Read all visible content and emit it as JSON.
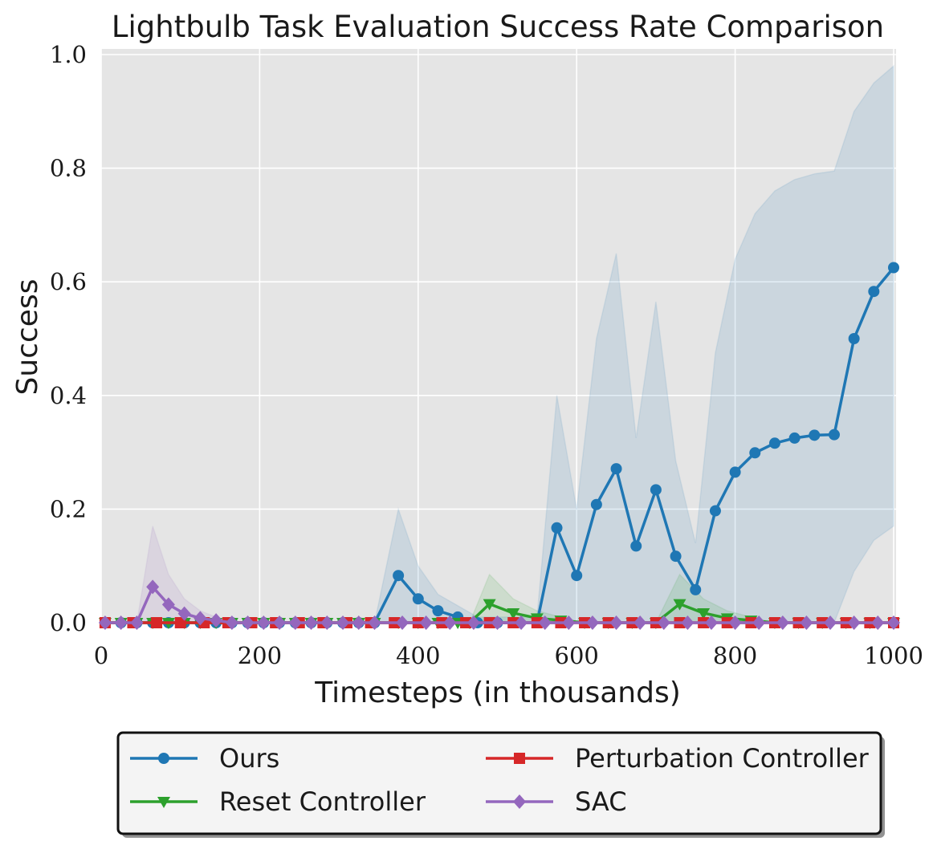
{
  "chart_data": {
    "type": "line",
    "title": "Lightbulb Task Evaluation Success Rate Comparison",
    "xlabel": "Timesteps (in thousands)",
    "ylabel": "Success",
    "xlim": [
      0,
      1000
    ],
    "ylim": [
      0,
      1.0
    ],
    "xticks": [
      0,
      200,
      400,
      600,
      800,
      1000
    ],
    "xtick_labels": [
      "0",
      "200",
      "400",
      "600",
      "800",
      "1000"
    ],
    "yticks": [
      0.0,
      0.2,
      0.4,
      0.6,
      0.8,
      1.0
    ],
    "ytick_labels": [
      "0.0",
      "0.2",
      "0.4",
      "0.6",
      "0.8",
      "1.0"
    ],
    "grid": true,
    "legend_position": "below",
    "series": [
      {
        "name": "Ours",
        "color": "#1f77b4",
        "marker": "circle",
        "x": [
          5,
          25,
          45,
          65,
          85,
          105,
          125,
          145,
          165,
          185,
          205,
          225,
          245,
          265,
          285,
          305,
          325,
          345,
          375,
          400,
          425,
          450,
          475,
          500,
          525,
          550,
          575,
          600,
          625,
          650,
          675,
          700,
          725,
          750,
          775,
          800,
          825,
          850,
          875,
          900,
          925,
          950,
          975,
          1000
        ],
        "values": [
          0,
          0,
          0,
          0,
          0,
          0,
          0,
          0,
          0,
          0,
          0,
          0,
          0,
          0,
          0,
          0,
          0,
          0,
          0.083,
          0.042,
          0.021,
          0.01,
          0,
          0,
          0,
          0,
          0.167,
          0.083,
          0.208,
          0.271,
          0.135,
          0.234,
          0.117,
          0.058,
          0.197,
          0.265,
          0.299,
          0.316,
          0.325,
          0.33,
          0.331,
          0.5,
          0.583,
          0.625
        ],
        "band_upper": [
          0,
          0,
          0,
          0,
          0,
          0,
          0,
          0,
          0,
          0,
          0,
          0,
          0,
          0,
          0,
          0,
          0,
          0,
          0.2,
          0.1,
          0.05,
          0.03,
          0.01,
          0.01,
          0.01,
          0.01,
          0.4,
          0.2,
          0.5,
          0.65,
          0.325,
          0.565,
          0.285,
          0.14,
          0.475,
          0.64,
          0.72,
          0.76,
          0.78,
          0.79,
          0.795,
          0.9,
          0.95,
          0.98
        ],
        "band_lower": [
          0,
          0,
          0,
          0,
          0,
          0,
          0,
          0,
          0,
          0,
          0,
          0,
          0,
          0,
          0,
          0,
          0,
          0,
          0,
          0,
          0,
          0,
          0,
          0,
          0,
          0,
          0,
          0,
          0,
          0,
          0,
          0,
          0,
          0,
          0,
          0,
          0,
          0,
          0,
          0,
          0,
          0.09,
          0.145,
          0.17
        ]
      },
      {
        "name": "Reset Controller",
        "color": "#2ca02c",
        "marker": "triangle-down",
        "x": [
          5,
          25,
          45,
          65,
          85,
          105,
          125,
          145,
          165,
          185,
          205,
          225,
          245,
          265,
          285,
          305,
          325,
          345,
          375,
          400,
          425,
          450,
          465,
          490,
          520,
          550,
          580,
          610,
          640,
          670,
          700,
          730,
          760,
          790,
          820,
          850,
          880,
          910,
          940,
          970,
          1000
        ],
        "values": [
          0,
          0,
          0,
          0,
          0,
          0,
          0,
          0,
          0,
          0,
          0,
          0,
          0,
          0,
          0,
          0,
          0,
          0,
          0,
          0,
          0,
          0,
          0,
          0.033,
          0.017,
          0.008,
          0.004,
          0,
          0,
          0,
          0,
          0.033,
          0.017,
          0.008,
          0.004,
          0,
          0,
          0,
          0,
          0,
          0
        ],
        "band_upper": [
          0,
          0,
          0,
          0,
          0,
          0,
          0,
          0,
          0,
          0,
          0,
          0,
          0,
          0,
          0,
          0,
          0,
          0,
          0,
          0,
          0,
          0,
          0,
          0.085,
          0.042,
          0.021,
          0.01,
          0,
          0,
          0,
          0,
          0.085,
          0.042,
          0.021,
          0.01,
          0,
          0,
          0,
          0,
          0,
          0
        ],
        "band_lower": [
          0,
          0,
          0,
          0,
          0,
          0,
          0,
          0,
          0,
          0,
          0,
          0,
          0,
          0,
          0,
          0,
          0,
          0,
          0,
          0,
          0,
          0,
          0,
          0,
          0,
          0,
          0,
          0,
          0,
          0,
          0,
          0,
          0,
          0,
          0,
          0,
          0,
          0,
          0,
          0,
          0
        ]
      },
      {
        "name": "Perturbation Controller",
        "color": "#d62728",
        "marker": "square",
        "x": [
          5,
          40,
          70,
          100,
          130,
          160,
          190,
          220,
          250,
          280,
          310,
          340,
          370,
          400,
          430,
          460,
          490,
          520,
          550,
          580,
          610,
          640,
          670,
          700,
          730,
          760,
          790,
          820,
          850,
          880,
          910,
          940,
          970,
          1000
        ],
        "values": [
          0,
          0,
          0,
          0,
          0,
          0,
          0,
          0,
          0,
          0,
          0,
          0,
          0,
          0,
          0,
          0,
          0,
          0,
          0,
          0,
          0,
          0,
          0,
          0,
          0,
          0,
          0,
          0,
          0,
          0,
          0,
          0,
          0,
          0
        ]
      },
      {
        "name": "SAC",
        "color": "#9467bd",
        "marker": "diamond",
        "x": [
          5,
          25,
          45,
          65,
          85,
          105,
          125,
          145,
          165,
          185,
          205,
          225,
          245,
          265,
          285,
          305,
          325,
          345,
          380,
          410,
          440,
          470,
          500,
          530,
          560,
          590,
          620,
          650,
          680,
          710,
          740,
          770,
          800,
          830,
          860,
          890,
          920,
          950,
          980,
          1000
        ],
        "values": [
          0,
          0,
          0,
          0.063,
          0.032,
          0.016,
          0.008,
          0.004,
          0,
          0,
          0,
          0,
          0,
          0,
          0,
          0,
          0,
          0,
          0,
          0,
          0,
          0,
          0,
          0,
          0,
          0,
          0,
          0,
          0,
          0,
          0,
          0,
          0,
          0,
          0,
          0,
          0,
          0,
          0,
          0
        ],
        "band_upper": [
          0,
          0,
          0,
          0.17,
          0.085,
          0.042,
          0.021,
          0.01,
          0,
          0,
          0,
          0,
          0,
          0,
          0,
          0,
          0,
          0,
          0,
          0,
          0,
          0,
          0,
          0,
          0,
          0,
          0,
          0,
          0,
          0,
          0,
          0,
          0,
          0,
          0,
          0,
          0,
          0,
          0,
          0
        ],
        "band_lower": [
          0,
          0,
          0,
          0,
          0,
          0,
          0,
          0,
          0,
          0,
          0,
          0,
          0,
          0,
          0,
          0,
          0,
          0,
          0,
          0,
          0,
          0,
          0,
          0,
          0,
          0,
          0,
          0,
          0,
          0,
          0,
          0,
          0,
          0,
          0,
          0,
          0,
          0,
          0,
          0
        ]
      }
    ]
  }
}
